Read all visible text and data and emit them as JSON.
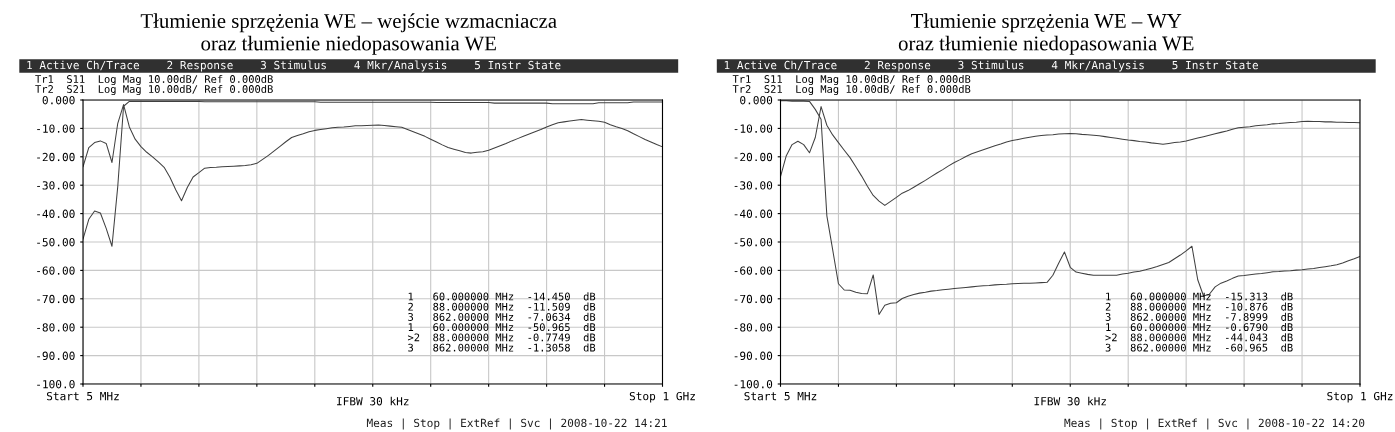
{
  "chart_data": [
    {
      "type": "line",
      "title": "Tłumienie sprzężenia WE – wejście wzmacniacza\noraz tłumienie niedopasowania WE",
      "categories": [
        "Start 5 MHz",
        null,
        null,
        null,
        null,
        null,
        null,
        null,
        null,
        null,
        null,
        null,
        null,
        null,
        null,
        null,
        null,
        null,
        null,
        null,
        null,
        null,
        null,
        null,
        null,
        null,
        null,
        null,
        null,
        null,
        null,
        null,
        null,
        null,
        null,
        null,
        null,
        null,
        null,
        null,
        null,
        null,
        null,
        null,
        null,
        null,
        null,
        null,
        null,
        null,
        null,
        null,
        null,
        null,
        null,
        null,
        null,
        null,
        null,
        null,
        null,
        null,
        null,
        null,
        null,
        null,
        null,
        null,
        null,
        null,
        null,
        null,
        null,
        null,
        null,
        null,
        null,
        null,
        null,
        null,
        null,
        null,
        null,
        null,
        null,
        null,
        null,
        null,
        null,
        null,
        null,
        null,
        null,
        null,
        null,
        null,
        null,
        null,
        null,
        null,
        "Stop 1 GHz"
      ],
      "ylim": [
        -100,
        0
      ],
      "yticks": [
        {
          "value": 0,
          "label": "0.000"
        },
        {
          "value": -10,
          "label": "-10.00"
        },
        {
          "value": -20,
          "label": "-20.00"
        },
        {
          "value": -30,
          "label": "-30.00"
        },
        {
          "value": -40,
          "label": "-40.00"
        },
        {
          "value": -50,
          "label": "-50.00"
        },
        {
          "value": -60,
          "label": "-60.00"
        },
        {
          "value": -70,
          "label": "-70.00"
        },
        {
          "value": -80,
          "label": "-80.00"
        },
        {
          "value": -90,
          "label": "-90.00"
        },
        {
          "value": -100,
          "label": "-100.0"
        }
      ],
      "grid": true,
      "legend": false,
      "line_style": "solid",
      "series": [
        {
          "color": "#404040",
          "values": [
            -23.5,
            -16.8,
            -15,
            -14.4,
            -15.3,
            -22,
            -8.2,
            -1.6,
            -9.5,
            -13.8,
            -16.4,
            -18.4,
            -20,
            -21.8,
            -23.7,
            -27.2,
            -31.6,
            -35.5,
            -30.8,
            -27.1,
            -25.6,
            -24,
            -23.8,
            -23.7,
            -23.5,
            -23.4,
            -23.3,
            -23.2,
            -23.1,
            -22.8,
            -22.3,
            -20.9,
            -19.5,
            -17.9,
            -16.3,
            -14.7,
            -13.2,
            -12.5,
            -11.9,
            -11.2,
            -10.7,
            -10.4,
            -10.1,
            -9.8,
            -9.6,
            -9.5,
            -9.3,
            -9.1,
            -9.1,
            -9,
            -8.9,
            -8.8,
            -9,
            -9.2,
            -9.4,
            -9.6,
            -10.4,
            -11.2,
            -12,
            -12.8,
            -13.8,
            -14.8,
            -15.8,
            -16.7,
            -17.3,
            -17.9,
            -18.5,
            -18.7,
            -18.4,
            -18.2,
            -17.7,
            -16.9,
            -16.1,
            -15.3,
            -14.4,
            -13.6,
            -12.8,
            -12,
            -11.2,
            -10.4,
            -9.5,
            -8.7,
            -8,
            -7.7,
            -7.4,
            -7.1,
            -6.9,
            -7.1,
            -7.3,
            -7.5,
            -7.8,
            -8.7,
            -9.4,
            -10,
            -10.8,
            -11.9,
            -12.9,
            -13.9,
            -14.8,
            -15.7,
            -16.5
          ]
        },
        {
          "color": "#404040",
          "values": [
            -49,
            -42,
            -39.1,
            -39.8,
            -45.2,
            -51.5,
            -30.4,
            -2.2,
            -0.5,
            -0.5,
            -0.5,
            -0.5,
            -0.5,
            -0.5,
            -0.5,
            -0.5,
            -0.5,
            -0.5,
            -0.5,
            -0.5,
            -0.5,
            -0.6,
            -0.6,
            -0.6,
            -0.6,
            -0.6,
            -0.6,
            -0.6,
            -0.6,
            -0.6,
            -0.6,
            -0.6,
            -0.6,
            -0.6,
            -0.6,
            -0.6,
            -0.6,
            -0.6,
            -0.6,
            -0.6,
            -0.6,
            -0.8,
            -0.8,
            -0.8,
            -0.8,
            -0.8,
            -0.8,
            -0.8,
            -0.8,
            -0.8,
            -0.8,
            -0.8,
            -0.8,
            -0.8,
            -0.8,
            -0.8,
            -0.8,
            -0.8,
            -0.8,
            -0.8,
            -0.8,
            -0.9,
            -0.9,
            -0.9,
            -0.9,
            -0.9,
            -0.9,
            -0.9,
            -0.9,
            -0.9,
            -0.9,
            -1.1,
            -1.1,
            -1.1,
            -1.1,
            -1.1,
            -1.1,
            -1.1,
            -1.1,
            -1.1,
            -1.1,
            -1.3,
            -1.3,
            -1.3,
            -1.3,
            -1.3,
            -1.3,
            -1.3,
            -1.3,
            -1,
            -1,
            -1,
            -1,
            -1,
            -1,
            -0.7,
            -0.7,
            -0.7,
            -0.7,
            -0.7,
            -0.7
          ]
        }
      ],
      "annotations": [
        "1 Active Ch/Trace    2 Response    3 Stimulus    4 Mkr/Analysis    5 Instr State",
        "Tr1  S11  Log Mag 10.00dB/ Ref 0.000dB",
        "Tr2  S21  Log Mag 10.00dB/ Ref 0.000dB",
        "1   60.000000 MHz  -14.450  dB",
        "2   88.000000 MHz  -11.509  dB",
        "3   862.00000 MHz  -7.0634  dB",
        "1   60.000000 MHz  -50.965  dB",
        ">2  88.000000 MHz  -0.7749  dB",
        "3   862.00000 MHz  -1.3058  dB",
        "IFBW 30 kHz",
        "Meas | Stop | ExtRef | Svc | 2008-10-22 14:21"
      ]
    },
    {
      "type": "line",
      "title": "Tłumienie sprzężenia WE – WY\noraz tłumienie niedopasowania WE",
      "categories": [
        "Start 5 MHz",
        null,
        null,
        null,
        null,
        null,
        null,
        null,
        null,
        null,
        null,
        null,
        null,
        null,
        null,
        null,
        null,
        null,
        null,
        null,
        null,
        null,
        null,
        null,
        null,
        null,
        null,
        null,
        null,
        null,
        null,
        null,
        null,
        null,
        null,
        null,
        null,
        null,
        null,
        null,
        null,
        null,
        null,
        null,
        null,
        null,
        null,
        null,
        null,
        null,
        null,
        null,
        null,
        null,
        null,
        null,
        null,
        null,
        null,
        null,
        null,
        null,
        null,
        null,
        null,
        null,
        null,
        null,
        null,
        null,
        null,
        null,
        null,
        null,
        null,
        null,
        null,
        null,
        null,
        null,
        null,
        null,
        null,
        null,
        null,
        null,
        null,
        null,
        null,
        null,
        null,
        null,
        null,
        null,
        null,
        null,
        null,
        null,
        null,
        null,
        "Stop 1 GHz"
      ],
      "ylim": [
        -100,
        0
      ],
      "yticks": [
        {
          "value": 0,
          "label": "0.000"
        },
        {
          "value": -10,
          "label": "-10.00"
        },
        {
          "value": -20,
          "label": "-20.00"
        },
        {
          "value": -30,
          "label": "-30.00"
        },
        {
          "value": -40,
          "label": "-40.00"
        },
        {
          "value": -50,
          "label": "-50.00"
        },
        {
          "value": -60,
          "label": "-60.00"
        },
        {
          "value": -70,
          "label": "-70.00"
        },
        {
          "value": -80,
          "label": "-80.00"
        },
        {
          "value": -90,
          "label": "-90.00"
        },
        {
          "value": -100,
          "label": "-100.0"
        }
      ],
      "grid": true,
      "legend": false,
      "line_style": "solid",
      "series": [
        {
          "color": "#404040",
          "values": [
            -27,
            -19.6,
            -15.7,
            -14.5,
            -15.7,
            -18.6,
            -13.2,
            -2.3,
            -8.9,
            -12.3,
            -15,
            -17.7,
            -20.3,
            -23.5,
            -26.8,
            -30.4,
            -33.6,
            -35.6,
            -37.1,
            -35.7,
            -34.3,
            -32.8,
            -31.9,
            -30.7,
            -29.5,
            -28.3,
            -27,
            -25.7,
            -24.5,
            -23.2,
            -22,
            -21,
            -19.9,
            -18.9,
            -18.2,
            -17.5,
            -16.8,
            -16.1,
            -15.5,
            -14.8,
            -14.3,
            -13.9,
            -13.5,
            -13.1,
            -12.8,
            -12.5,
            -12.3,
            -12.2,
            -12,
            -11.9,
            -11.8,
            -11.9,
            -12.1,
            -12.2,
            -12.4,
            -12.6,
            -12.9,
            -13.2,
            -13.5,
            -13.8,
            -14.1,
            -14.3,
            -14.6,
            -14.8,
            -15.1,
            -15.3,
            -15.6,
            -15.3,
            -15,
            -14.8,
            -14.4,
            -13.9,
            -13.4,
            -12.9,
            -12.4,
            -11.9,
            -11.4,
            -10.9,
            -10.3,
            -9.8,
            -9.6,
            -9.4,
            -9.1,
            -8.9,
            -8.7,
            -8.4,
            -8.3,
            -8.1,
            -7.9,
            -7.8,
            -7.6,
            -7.5,
            -7.6,
            -7.6,
            -7.7,
            -7.7,
            -7.8,
            -7.8,
            -7.9,
            -7.9,
            -8
          ]
        },
        {
          "color": "#404040",
          "values": [
            -0.3,
            -0.3,
            -0.4,
            -0.4,
            -0.4,
            -0.5,
            -3.3,
            -6.8,
            -40.8,
            -52.7,
            -64.7,
            -66.9,
            -67,
            -67.7,
            -68.1,
            -68.2,
            -61.6,
            -75.5,
            -72.3,
            -71.6,
            -71.4,
            -69.9,
            -69.1,
            -68.5,
            -68,
            -67.7,
            -67.3,
            -67.1,
            -66.8,
            -66.6,
            -66.4,
            -66.2,
            -66,
            -65.8,
            -65.6,
            -65.4,
            -65.3,
            -65.1,
            -65,
            -64.9,
            -64.7,
            -64.6,
            -64.5,
            -64.5,
            -64.4,
            -64.3,
            -64.2,
            -61.7,
            -57.5,
            -53.5,
            -58.9,
            -60.6,
            -61,
            -61.4,
            -61.7,
            -61.7,
            -61.7,
            -61.7,
            -61.7,
            -61.3,
            -61,
            -60.6,
            -60.3,
            -59.8,
            -59.2,
            -58.6,
            -57.9,
            -57.2,
            -55.9,
            -54.6,
            -53.1,
            -51.5,
            -63.3,
            -69,
            -68.4,
            -65.8,
            -64.5,
            -63.7,
            -62.8,
            -62,
            -61.8,
            -61.5,
            -61.3,
            -61.1,
            -60.8,
            -60.5,
            -60.4,
            -60.2,
            -60.1,
            -59.9,
            -59.8,
            -59.5,
            -59.3,
            -59,
            -58.7,
            -58.4,
            -58,
            -57.4,
            -56.6,
            -55.9,
            -55.1
          ]
        }
      ],
      "annotations": [
        "1 Active Ch/Trace    2 Response    3 Stimulus    4 Mkr/Analysis    5 Instr State",
        "Tr1  S11  Log Mag 10.00dB/ Ref 0.000dB",
        "Tr2  S21  Log Mag 10.00dB/ Ref 0.000dB",
        "1   60.000000 MHz  -15.313  dB",
        "2   88.000000 MHz  -10.876  dB",
        "3   862.00000 MHz  -7.8999  dB",
        "1   60.000000 MHz  -0.6790  dB",
        ">2  88.000000 MHz  -44.043  dB",
        "3   862.00000 MHz  -60.965  dB",
        "IFBW 30 kHz",
        "Meas | Stop | ExtRef | Svc | 2008-10-22 14:20"
      ]
    }
  ]
}
